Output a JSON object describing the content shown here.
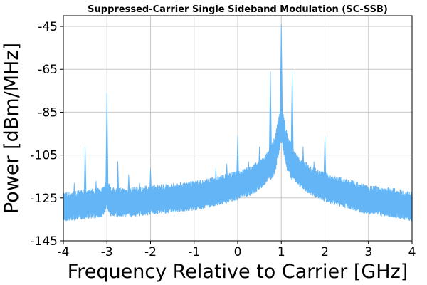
{
  "chart_data": {
    "type": "line",
    "title": "Suppressed-Carrier Single Sideband Modulation (SC-SSB)",
    "xlabel": "Frequency Relative to Carrier [GHz]",
    "ylabel": "Power [dBm/MHz]",
    "xlim": [
      -4,
      4
    ],
    "ylim": [
      -145,
      -40
    ],
    "xticks": [
      -4,
      -3,
      -2,
      -1,
      0,
      1,
      2,
      3,
      4
    ],
    "yticks": [
      -45,
      -65,
      -85,
      -105,
      -125,
      -145
    ],
    "grid": true,
    "series": [
      {
        "color": "#64b5f6",
        "noise_floor": [
          [
            -4.0,
            -129
          ],
          [
            -3.5,
            -128
          ],
          [
            -3.1,
            -127
          ],
          [
            -3.0,
            -123
          ],
          [
            -2.9,
            -127
          ],
          [
            -2.5,
            -127
          ],
          [
            -2.0,
            -126
          ],
          [
            -1.5,
            -125
          ],
          [
            -1.0,
            -124
          ],
          [
            -0.5,
            -122
          ],
          [
            0.0,
            -119
          ],
          [
            0.3,
            -117
          ],
          [
            0.6,
            -113
          ],
          [
            0.85,
            -105
          ],
          [
            1.0,
            -90
          ],
          [
            1.15,
            -105
          ],
          [
            1.4,
            -113
          ],
          [
            1.7,
            -117
          ],
          [
            2.0,
            -120
          ],
          [
            2.5,
            -123
          ],
          [
            3.0,
            -126
          ],
          [
            3.5,
            -127
          ],
          [
            4.0,
            -129
          ]
        ],
        "spurs": [
          [
            -3.75,
            -118
          ],
          [
            -3.5,
            -101
          ],
          [
            -3.25,
            -117
          ],
          [
            -3.0,
            -76
          ],
          [
            -2.75,
            -108
          ],
          [
            -2.5,
            -114
          ],
          [
            -2.25,
            -118
          ],
          [
            -2.0,
            -111
          ],
          [
            -1.75,
            -120
          ],
          [
            -0.5,
            -111
          ],
          [
            -0.25,
            -109
          ],
          [
            0.0,
            -96
          ],
          [
            0.25,
            -108
          ],
          [
            0.5,
            -101
          ],
          [
            0.75,
            -66
          ],
          [
            1.0,
            -44
          ],
          [
            1.25,
            -66
          ],
          [
            1.5,
            -101
          ],
          [
            1.75,
            -108
          ],
          [
            2.0,
            -96
          ]
        ]
      }
    ]
  }
}
